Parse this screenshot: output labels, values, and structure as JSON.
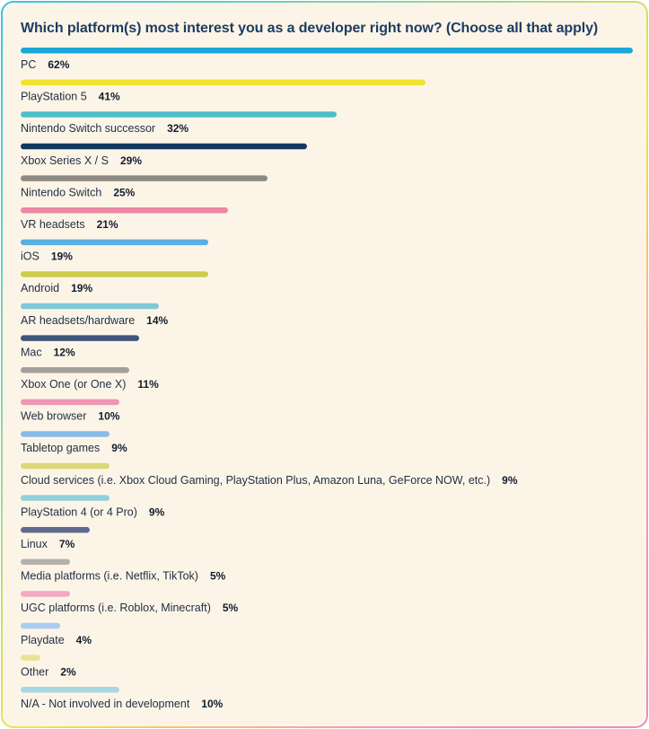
{
  "title": "Which platform(s) most interest you as a developer right now? (Choose all that apply)",
  "chart_data": {
    "type": "bar",
    "orientation": "horizontal",
    "title": "Which platform(s) most interest you as a developer right now? (Choose all that apply)",
    "value_suffix": "%",
    "xlim": [
      0,
      62
    ],
    "categories": [
      "PC",
      "PlayStation 5",
      "Nintendo Switch successor",
      "Xbox Series X / S",
      "Nintendo Switch",
      "VR headsets",
      "iOS",
      "Android",
      "AR headsets/hardware",
      "Mac",
      "Xbox One (or One X)",
      "Web browser",
      "Tabletop games",
      "Cloud services (i.e. Xbox Cloud Gaming, PlayStation Plus, Amazon Luna, GeForce NOW, etc.)",
      "PlayStation 4 (or 4 Pro)",
      "Linux",
      "Media platforms (i.e. Netflix, TikTok)",
      "UGC platforms (i.e. Roblox, Minecraft)",
      "Playdate",
      "Other",
      "N/A - Not involved in development"
    ],
    "values": [
      62,
      41,
      32,
      29,
      25,
      21,
      19,
      19,
      14,
      12,
      11,
      10,
      9,
      9,
      9,
      7,
      5,
      5,
      4,
      2,
      10
    ],
    "colors": [
      "#1ba7d8",
      "#f2e42e",
      "#4dbec9",
      "#12395f",
      "#8c8a82",
      "#ec86a4",
      "#5aaee0",
      "#cfcc4c",
      "#7ec9d6",
      "#3d5578",
      "#a3a09a",
      "#f095b4",
      "#86bce8",
      "#dcd779",
      "#92d0dc",
      "#5f6b8e",
      "#b3b1ab",
      "#f4a9c2",
      "#a9cdf0",
      "#e7e296",
      "#a7d8e2"
    ]
  }
}
